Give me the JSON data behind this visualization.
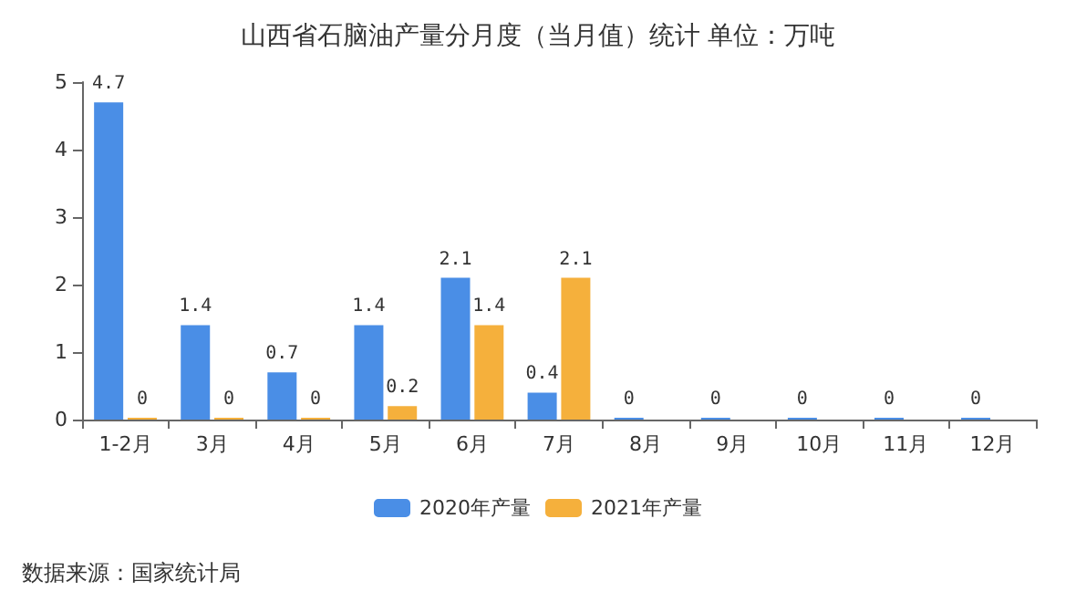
{
  "chart_data": {
    "type": "bar",
    "title": "山西省石脑油产量分月度（当月值）统计 单位：万吨",
    "categories": [
      "1-2月",
      "3月",
      "4月",
      "5月",
      "6月",
      "7月",
      "8月",
      "9月",
      "10月",
      "11月",
      "12月"
    ],
    "series": [
      {
        "name": "2020年产量",
        "color": "#4a8ee6",
        "values": [
          4.7,
          1.4,
          0.7,
          1.4,
          2.1,
          0.4,
          0,
          0,
          0,
          0,
          0
        ]
      },
      {
        "name": "2021年产量",
        "color": "#f5b03c",
        "values": [
          0,
          0,
          0,
          0.2,
          1.4,
          2.1,
          null,
          null,
          null,
          null,
          null
        ]
      }
    ],
    "ylim": [
      0,
      5
    ],
    "yticks": [
      0,
      1,
      2,
      3,
      4,
      5
    ],
    "grid": false,
    "legend": "bottom",
    "data_labels": true,
    "annotations": [
      "数据来源：国家统计局"
    ]
  }
}
